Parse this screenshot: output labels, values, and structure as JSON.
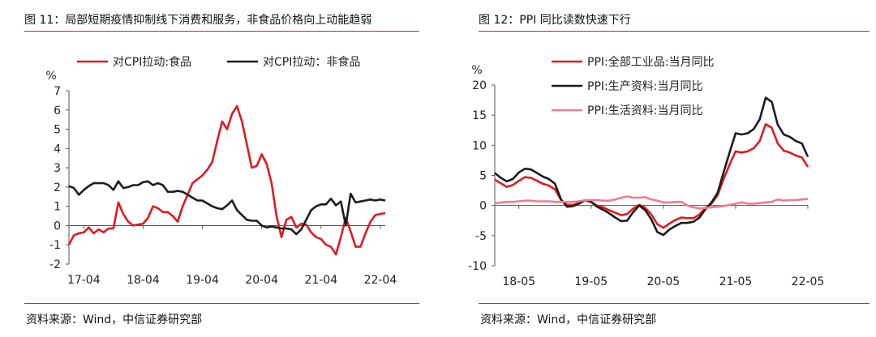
{
  "panels": [
    {
      "title": "图 11：局部短期疫情抑制线下消费和服务，非食品价格向上动能趋弱",
      "source": "资料来源：Wind，中信证券研究部",
      "chart_data": {
        "type": "line",
        "ylabel": "%",
        "ylim": [
          -2,
          7
        ],
        "yticks": [
          -2,
          -1,
          0,
          1,
          2,
          3,
          4,
          5,
          6,
          7
        ],
        "xticks": [
          "17-04",
          "18-04",
          "19-04",
          "20-04",
          "21-04",
          "22-04"
        ],
        "x_range": [
          "2017-01",
          "2022-05"
        ],
        "legend_position": "top",
        "series": [
          {
            "name": "对CPI拉动:食品",
            "color": "#e01a22",
            "x": [
              "2017-01",
              "2017-02",
              "2017-03",
              "2017-04",
              "2017-05",
              "2017-06",
              "2017-07",
              "2017-08",
              "2017-09",
              "2017-10",
              "2017-11",
              "2017-12",
              "2018-01",
              "2018-02",
              "2018-03",
              "2018-04",
              "2018-05",
              "2018-06",
              "2018-07",
              "2018-08",
              "2018-09",
              "2018-10",
              "2018-11",
              "2018-12",
              "2019-01",
              "2019-02",
              "2019-03",
              "2019-04",
              "2019-05",
              "2019-06",
              "2019-07",
              "2019-08",
              "2019-09",
              "2019-10",
              "2019-11",
              "2019-12",
              "2020-01",
              "2020-02",
              "2020-03",
              "2020-04",
              "2020-05",
              "2020-06",
              "2020-07",
              "2020-08",
              "2020-09",
              "2020-10",
              "2020-11",
              "2020-12",
              "2021-01",
              "2021-02",
              "2021-03",
              "2021-04",
              "2021-05",
              "2021-06",
              "2021-07",
              "2021-08",
              "2021-09",
              "2021-10",
              "2021-11",
              "2021-12",
              "2022-01",
              "2022-02",
              "2022-03",
              "2022-04",
              "2022-05"
            ],
            "y": [
              -1.0,
              -0.5,
              -0.4,
              -0.35,
              -0.1,
              -0.4,
              -0.2,
              -0.35,
              -0.15,
              -0.15,
              1.2,
              0.6,
              0.2,
              0.0,
              0.05,
              0.1,
              0.4,
              1.0,
              0.9,
              0.7,
              0.7,
              0.5,
              0.2,
              1.0,
              1.6,
              2.2,
              2.4,
              2.6,
              2.9,
              3.3,
              4.4,
              5.4,
              5.0,
              5.8,
              6.2,
              5.4,
              4.2,
              3.0,
              3.1,
              3.7,
              3.2,
              2.2,
              0.5,
              -0.6,
              0.3,
              0.45,
              -0.1,
              0.1,
              0.05,
              -0.35,
              -0.6,
              -0.7,
              -1.0,
              -1.1,
              -1.5,
              -0.6,
              0.4,
              -0.3,
              -1.1,
              -1.1,
              -0.4,
              0.2,
              0.55,
              0.6,
              0.65
            ]
          },
          {
            "name": "对CPI拉动：非食品",
            "color": "#1c1c1c",
            "x": [
              "2017-01",
              "2017-02",
              "2017-03",
              "2017-04",
              "2017-05",
              "2017-06",
              "2017-07",
              "2017-08",
              "2017-09",
              "2017-10",
              "2017-11",
              "2017-12",
              "2018-01",
              "2018-02",
              "2018-03",
              "2018-04",
              "2018-05",
              "2018-06",
              "2018-07",
              "2018-08",
              "2018-09",
              "2018-10",
              "2018-11",
              "2018-12",
              "2019-01",
              "2019-02",
              "2019-03",
              "2019-04",
              "2019-05",
              "2019-06",
              "2019-07",
              "2019-08",
              "2019-09",
              "2019-10",
              "2019-11",
              "2019-12",
              "2020-01",
              "2020-02",
              "2020-03",
              "2020-04",
              "2020-05",
              "2020-06",
              "2020-07",
              "2020-08",
              "2020-09",
              "2020-10",
              "2020-11",
              "2020-12",
              "2021-01",
              "2021-02",
              "2021-03",
              "2021-04",
              "2021-05",
              "2021-06",
              "2021-07",
              "2021-08",
              "2021-09",
              "2021-10",
              "2021-11",
              "2021-12",
              "2022-01",
              "2022-02",
              "2022-03",
              "2022-04",
              "2022-05"
            ],
            "y": [
              2.05,
              1.95,
              1.6,
              1.85,
              2.05,
              2.2,
              2.2,
              2.2,
              2.1,
              1.85,
              2.3,
              1.95,
              2.0,
              2.1,
              2.1,
              2.25,
              2.3,
              2.1,
              2.2,
              2.1,
              1.75,
              1.75,
              1.8,
              1.75,
              1.6,
              1.45,
              1.3,
              1.3,
              1.15,
              1.0,
              0.9,
              0.85,
              1.05,
              1.3,
              0.8,
              0.55,
              0.3,
              0.25,
              0.25,
              0.0,
              -0.1,
              -0.05,
              -0.1,
              -0.15,
              -0.15,
              -0.2,
              -0.45,
              -0.2,
              0.3,
              0.8,
              1.0,
              1.1,
              1.1,
              1.4,
              1.05,
              1.25,
              0.0,
              1.65,
              1.2,
              1.25,
              1.3,
              1.35,
              1.3,
              1.35,
              1.3
            ]
          }
        ]
      }
    },
    {
      "title": "图 12：PPI 同比读数快速下行",
      "source": "资料来源：Wind，中信证券研究部",
      "chart_data": {
        "type": "line",
        "ylabel": "%",
        "ylim": [
          -10,
          20
        ],
        "yticks": [
          -10,
          -5,
          0,
          5,
          10,
          15,
          20
        ],
        "xticks": [
          "18-05",
          "19-05",
          "20-05",
          "21-05",
          "22-05"
        ],
        "x_range": [
          "2018-01",
          "2022-05"
        ],
        "legend_position": "top",
        "series": [
          {
            "name": "PPI:全部工业品:当月同比",
            "color": "#e01a22",
            "x": [
              "2018-01",
              "2018-02",
              "2018-03",
              "2018-04",
              "2018-05",
              "2018-06",
              "2018-07",
              "2018-08",
              "2018-09",
              "2018-10",
              "2018-11",
              "2018-12",
              "2019-01",
              "2019-02",
              "2019-03",
              "2019-04",
              "2019-05",
              "2019-06",
              "2019-07",
              "2019-08",
              "2019-09",
              "2019-10",
              "2019-11",
              "2019-12",
              "2020-01",
              "2020-02",
              "2020-03",
              "2020-04",
              "2020-05",
              "2020-06",
              "2020-07",
              "2020-08",
              "2020-09",
              "2020-10",
              "2020-11",
              "2020-12",
              "2021-01",
              "2021-02",
              "2021-03",
              "2021-04",
              "2021-05",
              "2021-06",
              "2021-07",
              "2021-08",
              "2021-09",
              "2021-10",
              "2021-11",
              "2021-12",
              "2022-01",
              "2022-02",
              "2022-03",
              "2022-04",
              "2022-05"
            ],
            "y": [
              4.3,
              3.7,
              3.1,
              3.4,
              4.1,
              4.7,
              4.6,
              4.1,
              3.6,
              3.3,
              2.7,
              0.9,
              0.1,
              0.1,
              0.4,
              0.9,
              0.6,
              0.0,
              -0.3,
              -0.8,
              -1.2,
              -1.6,
              -1.4,
              -0.5,
              0.1,
              -0.4,
              -1.5,
              -3.1,
              -3.7,
              -3.0,
              -2.4,
              -2.0,
              -2.1,
              -2.1,
              -1.5,
              -0.4,
              0.3,
              1.7,
              4.4,
              6.8,
              9.0,
              8.8,
              9.0,
              9.5,
              10.7,
              13.5,
              12.9,
              10.3,
              9.1,
              8.8,
              8.3,
              8.0,
              6.4
            ]
          },
          {
            "name": "PPI:生产资料:当月同比",
            "color": "#1c1c1c",
            "x": [
              "2018-01",
              "2018-02",
              "2018-03",
              "2018-04",
              "2018-05",
              "2018-06",
              "2018-07",
              "2018-08",
              "2018-09",
              "2018-10",
              "2018-11",
              "2018-12",
              "2019-01",
              "2019-02",
              "2019-03",
              "2019-04",
              "2019-05",
              "2019-06",
              "2019-07",
              "2019-08",
              "2019-09",
              "2019-10",
              "2019-11",
              "2019-12",
              "2020-01",
              "2020-02",
              "2020-03",
              "2020-04",
              "2020-05",
              "2020-06",
              "2020-07",
              "2020-08",
              "2020-09",
              "2020-10",
              "2020-11",
              "2020-12",
              "2021-01",
              "2021-02",
              "2021-03",
              "2021-04",
              "2021-05",
              "2021-06",
              "2021-07",
              "2021-08",
              "2021-09",
              "2021-10",
              "2021-11",
              "2021-12",
              "2022-01",
              "2022-02",
              "2022-03",
              "2022-04",
              "2022-05"
            ],
            "y": [
              5.4,
              4.6,
              4.0,
              4.4,
              5.5,
              6.1,
              6.0,
              5.4,
              4.8,
              4.4,
              3.6,
              1.0,
              -0.2,
              -0.1,
              0.3,
              0.9,
              0.6,
              -0.2,
              -0.7,
              -1.3,
              -2.0,
              -2.6,
              -2.5,
              -1.1,
              0.0,
              -0.8,
              -2.3,
              -4.4,
              -4.9,
              -4.0,
              -3.4,
              -2.9,
              -2.9,
              -2.7,
              -2.0,
              -0.6,
              0.5,
              2.1,
              5.5,
              8.8,
              12.0,
              11.8,
              12.0,
              12.7,
              14.3,
              17.9,
              17.2,
              13.4,
              11.8,
              11.4,
              10.7,
              10.3,
              8.1
            ]
          },
          {
            "name": "PPI:生活资料:当月同比",
            "color": "#f27b8c",
            "x": [
              "2018-01",
              "2018-02",
              "2018-03",
              "2018-04",
              "2018-05",
              "2018-06",
              "2018-07",
              "2018-08",
              "2018-09",
              "2018-10",
              "2018-11",
              "2018-12",
              "2019-01",
              "2019-02",
              "2019-03",
              "2019-04",
              "2019-05",
              "2019-06",
              "2019-07",
              "2019-08",
              "2019-09",
              "2019-10",
              "2019-11",
              "2019-12",
              "2020-01",
              "2020-02",
              "2020-03",
              "2020-04",
              "2020-05",
              "2020-06",
              "2020-07",
              "2020-08",
              "2020-09",
              "2020-10",
              "2020-11",
              "2020-12",
              "2021-01",
              "2021-02",
              "2021-03",
              "2021-04",
              "2021-05",
              "2021-06",
              "2021-07",
              "2021-08",
              "2021-09",
              "2021-10",
              "2021-11",
              "2021-12",
              "2022-01",
              "2022-02",
              "2022-03",
              "2022-04",
              "2022-05"
            ],
            "y": [
              0.3,
              0.5,
              0.6,
              0.6,
              0.7,
              0.8,
              0.8,
              0.7,
              0.7,
              0.7,
              0.6,
              0.6,
              0.6,
              0.6,
              0.7,
              0.9,
              0.9,
              0.9,
              0.8,
              0.8,
              1.0,
              1.3,
              1.5,
              1.3,
              1.3,
              1.4,
              1.0,
              0.8,
              0.5,
              0.5,
              0.6,
              0.6,
              0.0,
              -0.3,
              -0.5,
              -0.4,
              -0.3,
              -0.2,
              -0.1,
              0.1,
              0.3,
              0.5,
              0.3,
              0.3,
              0.4,
              0.5,
              0.6,
              1.0,
              0.8,
              0.9,
              0.9,
              1.0,
              1.1
            ]
          }
        ]
      }
    }
  ]
}
